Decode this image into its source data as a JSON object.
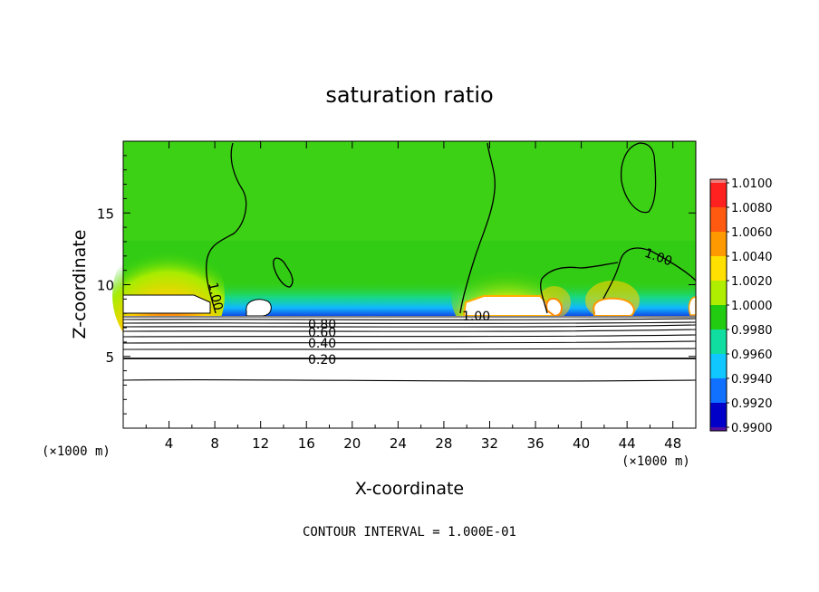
{
  "chart_data": {
    "type": "heatmap",
    "title": "saturation ratio",
    "xlabel": "X-coordinate",
    "ylabel": "Z-coordinate",
    "x_unit": "(×1000 m)",
    "y_unit": "(×1000 m)",
    "xlim": [
      0,
      50
    ],
    "ylim": [
      0,
      20
    ],
    "x_ticks": [
      "4",
      "8",
      "12",
      "16",
      "20",
      "24",
      "28",
      "32",
      "36",
      "40",
      "44",
      "48"
    ],
    "y_ticks": [
      "5",
      "10",
      "15"
    ],
    "colorbar": {
      "range": [
        0.99,
        1.01
      ],
      "labels": [
        "1.0100",
        "1.0080",
        "1.0060",
        "1.0040",
        "1.0020",
        "1.0000",
        "0.9980",
        "0.9960",
        "0.9940",
        "0.9920",
        "0.9900"
      ],
      "colors": [
        "#f08080",
        "#ff2020",
        "#ff5a10",
        "#ff9900",
        "#ffe000",
        "#b0ee00",
        "#22cc10",
        "#10dda0",
        "#10c8ff",
        "#1070ff",
        "#0000c8",
        "#5010a0"
      ]
    },
    "contour_labels": [
      "1.00",
      "1.00",
      "1.00",
      "0.80",
      "0.60",
      "0.40",
      "0.20"
    ],
    "contour_interval": "CONTOUR INTERVAL = 1.000E-01",
    "grid": false,
    "legend": "right"
  }
}
